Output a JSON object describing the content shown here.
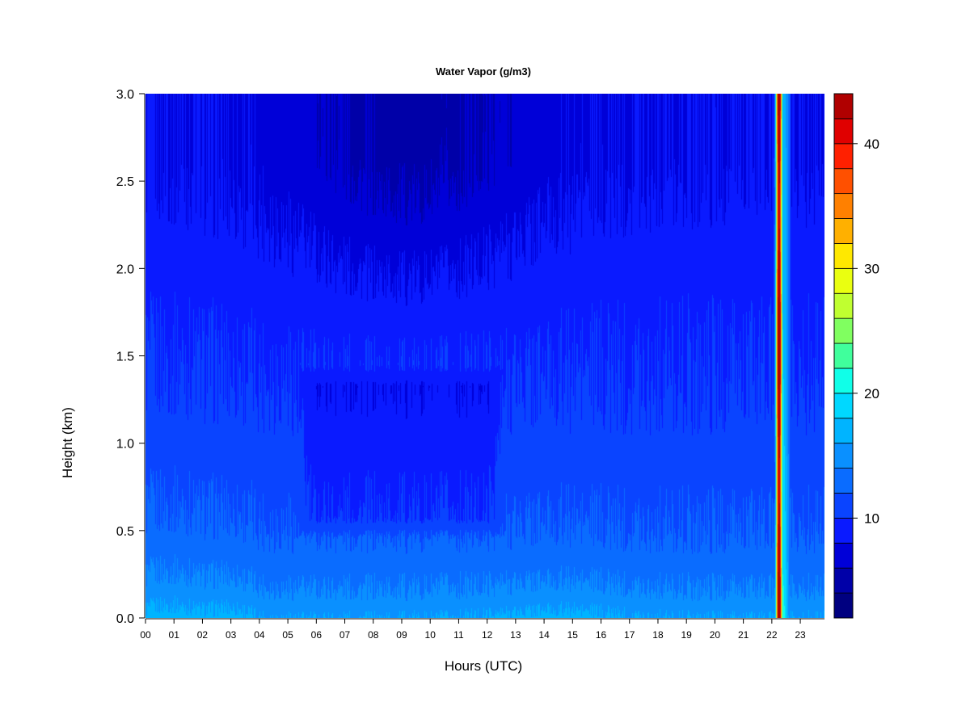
{
  "chart_data": {
    "type": "heatmap",
    "title": "Water Vapor (g/m3)",
    "xlabel": "Hours (UTC)",
    "ylabel": "Height (km)",
    "x_ticks": [
      "00",
      "01",
      "02",
      "03",
      "04",
      "05",
      "06",
      "07",
      "08",
      "09",
      "10",
      "11",
      "12",
      "13",
      "14",
      "15",
      "16",
      "17",
      "18",
      "19",
      "20",
      "21",
      "22",
      "23"
    ],
    "y_ticks": [
      "0.0",
      "0.5",
      "1.0",
      "1.5",
      "2.0",
      "2.5",
      "3.0"
    ],
    "xlim": [
      0,
      23.85
    ],
    "ylim": [
      0,
      3.0
    ],
    "colorbar": {
      "ticks": [
        "10",
        "20",
        "30",
        "40"
      ],
      "tick_values": [
        10,
        20,
        30,
        40
      ],
      "range": [
        2,
        44
      ],
      "levels": [
        2,
        4,
        6,
        8,
        10,
        12,
        14,
        16,
        18,
        20,
        22,
        24,
        26,
        28,
        30,
        32,
        34,
        36,
        38,
        40,
        42,
        44
      ],
      "colors": [
        "#000080",
        "#0000a8",
        "#0000d8",
        "#0a1aff",
        "#0a44ff",
        "#0a6cff",
        "#0a90ff",
        "#00b4ff",
        "#00d8ff",
        "#10ffe8",
        "#40ff9c",
        "#80ff60",
        "#c0ff30",
        "#eaff10",
        "#ffe800",
        "#ffb000",
        "#ff8000",
        "#ff5000",
        "#ff2000",
        "#e00000",
        "#b00000",
        "#800000"
      ]
    },
    "features": {
      "front_band_hours": [
        21.95,
        22.7
      ],
      "front_core_peak_value": 43
    }
  }
}
